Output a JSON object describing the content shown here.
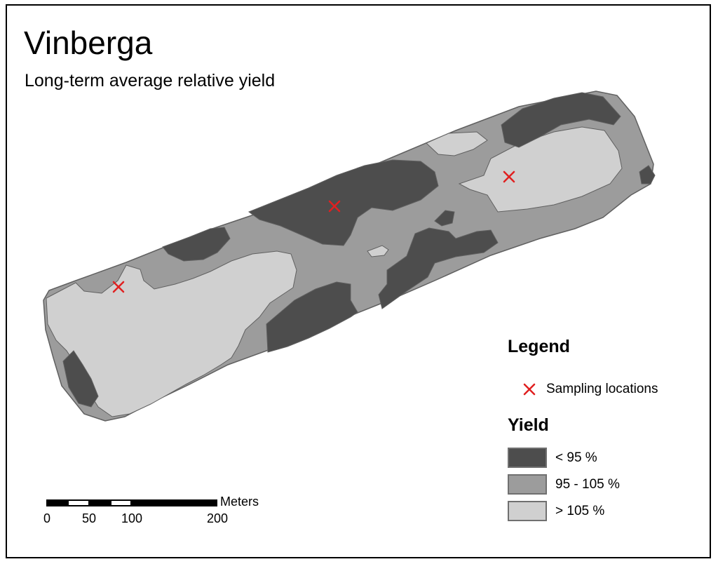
{
  "map": {
    "title": "Vinberga",
    "subtitle": "Long-term average relative yield"
  },
  "legend": {
    "heading": "Legend",
    "sampling_label": "Sampling locations",
    "sampling_icon": "red-x-marker",
    "yield_heading": "Yield",
    "classes": [
      {
        "label": "< 95 %",
        "color": "#4d4d4d"
      },
      {
        "label": "95 - 105 %",
        "color": "#9c9c9c"
      },
      {
        "label": "> 105 %",
        "color": "#d0d0d0"
      }
    ]
  },
  "scale_bar": {
    "unit": "Meters",
    "ticks": [
      "0",
      "50",
      "100",
      "200"
    ]
  },
  "colors": {
    "low": "#4d4d4d",
    "mid": "#9c9c9c",
    "high": "#d0d0d0",
    "marker": "#e02020"
  }
}
